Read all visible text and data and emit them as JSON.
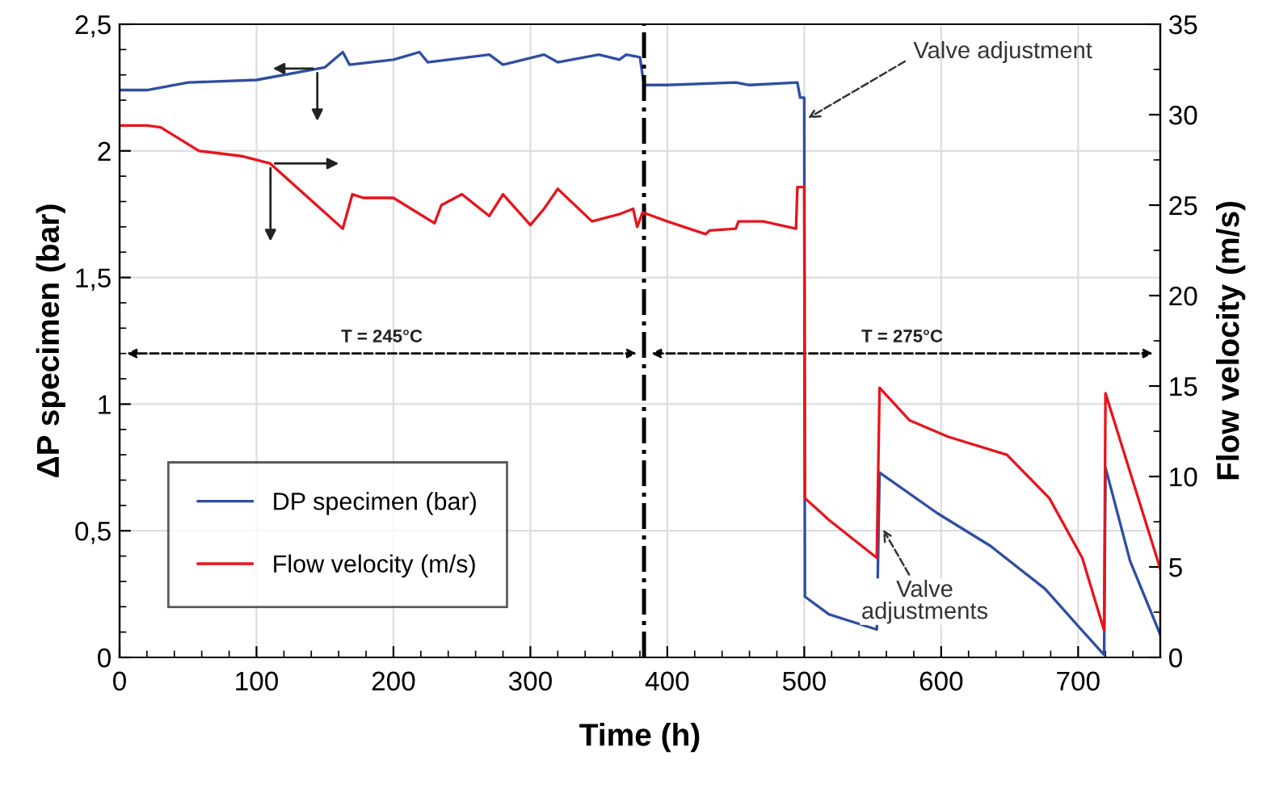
{
  "chart_data": {
    "type": "line",
    "xlabel": "Time (h)",
    "ylabel": "ΔP specimen (bar)",
    "y2label": "Flow velocity (m/s)",
    "xlim": [
      0,
      760
    ],
    "xticks": [
      0,
      100,
      200,
      300,
      400,
      500,
      600,
      700
    ],
    "ylim": [
      0,
      2.5
    ],
    "yticks": [
      {
        "value": 0,
        "label": "0"
      },
      {
        "value": 0.5,
        "label": "0,5"
      },
      {
        "value": 1,
        "label": "1"
      },
      {
        "value": 1.5,
        "label": "1,5"
      },
      {
        "value": 2,
        "label": "2"
      },
      {
        "value": 2.5,
        "label": "2,5"
      }
    ],
    "y2lim": [
      0,
      35
    ],
    "y2ticks": [
      0,
      5,
      10,
      15,
      20,
      25,
      30,
      35
    ],
    "grid": true,
    "legend": "bottom left",
    "marker": "none",
    "line_style": "solid",
    "series": [
      {
        "name": "DP specimen (bar)",
        "color": "#2f4ea3",
        "x": [
          0,
          20,
          50,
          100,
          150,
          163,
          168,
          200,
          219,
          225,
          270,
          280,
          310,
          320,
          350,
          365,
          370,
          380,
          383,
          400,
          450,
          460,
          495,
          497,
          500,
          500.5,
          518,
          553,
          555,
          597,
          636,
          676,
          699,
          719,
          720,
          738,
          760
        ],
        "values": [
          2.24,
          2.24,
          2.27,
          2.28,
          2.33,
          2.39,
          2.34,
          2.36,
          2.39,
          2.35,
          2.38,
          2.34,
          2.38,
          2.35,
          2.38,
          2.36,
          2.38,
          2.37,
          2.26,
          2.26,
          2.27,
          2.26,
          2.27,
          2.21,
          2.21,
          0.24,
          0.17,
          0.11,
          0.73,
          0.57,
          0.44,
          0.27,
          0.13,
          0.01,
          0.75,
          0.38,
          0.09
        ]
      },
      {
        "name": "Flow velocity (m/s)",
        "color": "#e8141c",
        "axis": "y2",
        "x": [
          0,
          20,
          30,
          58,
          90,
          110,
          163,
          170,
          178,
          200,
          230,
          235,
          250,
          270,
          280,
          300,
          310,
          320,
          345,
          360,
          365,
          375,
          378,
          382,
          400,
          428,
          431,
          450,
          452,
          470,
          494,
          495,
          500,
          500.5,
          518,
          553,
          555,
          577,
          605,
          648,
          679,
          703,
          719,
          720,
          760
        ],
        "values": [
          29.4,
          29.4,
          29.3,
          28.0,
          27.7,
          27.3,
          23.7,
          25.6,
          25.4,
          25.4,
          24.0,
          25.0,
          25.6,
          24.4,
          25.6,
          23.9,
          24.8,
          25.9,
          24.1,
          24.4,
          24.5,
          24.8,
          23.8,
          24.6,
          24.1,
          23.4,
          23.6,
          23.7,
          24.1,
          24.1,
          23.7,
          26.0,
          26.0,
          8.8,
          7.6,
          5.5,
          14.9,
          13.1,
          12.2,
          11.2,
          8.8,
          5.5,
          1.5,
          14.6,
          4.9
        ]
      }
    ],
    "ref_lines": [
      {
        "axis": "x",
        "value": 383,
        "color": "#000000",
        "line_style": "dashdot"
      }
    ],
    "annotations": [
      "T = 245°C",
      "T = 275°C",
      {
        "text": "Valve adjustment",
        "x": 500,
        "y": 2.12
      },
      {
        "text": "Valve adjustments",
        "x": 556,
        "y": 0.52
      }
    ]
  }
}
